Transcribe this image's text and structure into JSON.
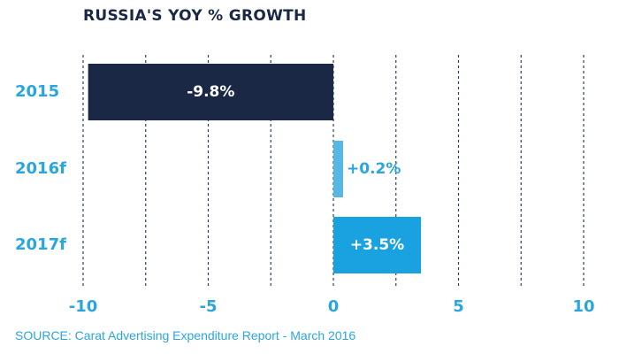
{
  "chart_data": {
    "type": "bar",
    "orientation": "horizontal",
    "title": "RUSSIA'S YOY % GROWTH",
    "categories": [
      "2015",
      "2016f",
      "2017f"
    ],
    "values": [
      -9.8,
      0.2,
      3.5
    ],
    "value_labels": [
      "-9.8%",
      "+0.2%",
      "+3.5%"
    ],
    "bar_colors": [
      "#1b2845",
      "#57b8e6",
      "#1aa2e0"
    ],
    "value_label_colors": [
      "#ffffff",
      "#2aa6de",
      "#ffffff"
    ],
    "xlim": [
      -10,
      10
    ],
    "x_ticks": [
      -10,
      -5,
      0,
      5,
      10
    ],
    "x_tick_labels": [
      "-10",
      "-5",
      "0",
      "5",
      "10"
    ],
    "minor_gridlines_at": [
      -7.5,
      -2.5,
      2.5,
      7.5
    ],
    "grid": "vertical dashed",
    "xlabel": "",
    "ylabel": ""
  },
  "source": "SOURCE: Carat Advertising Expenditure Report - March 2016",
  "colors": {
    "accent": "#2aa6de",
    "dark": "#1b2845",
    "grid": "#2c3f66"
  }
}
